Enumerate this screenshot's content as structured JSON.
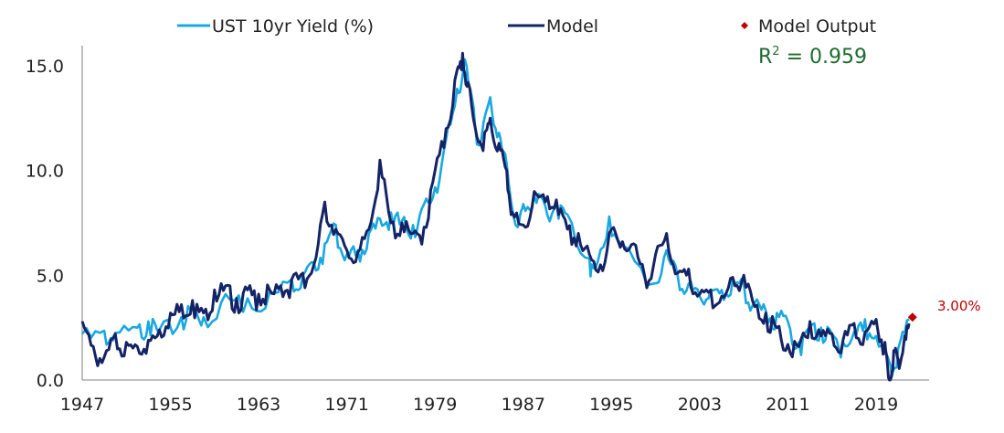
{
  "chart_data": {
    "type": "line",
    "x_range": [
      1947,
      2022.5
    ],
    "ylim": [
      0,
      15
    ],
    "xticks": [
      1947,
      1955,
      1963,
      1971,
      1979,
      1987,
      1995,
      2003,
      2011,
      2019
    ],
    "yticks": [
      0,
      5,
      10,
      15
    ],
    "ytick_labels": [
      "0.0",
      "5.0",
      "10.0",
      "15.0"
    ],
    "xlabel": "",
    "ylabel": "",
    "grid": false,
    "legend_position": "top",
    "series": [
      {
        "name": "UST 10yr Yield (%)",
        "color": "#19a8e0",
        "x": [
          1947,
          1949,
          1950,
          1952,
          1953,
          1954,
          1956,
          1957,
          1958,
          1960,
          1962,
          1964,
          1966,
          1967,
          1968,
          1969,
          1970,
          1971,
          1972,
          1973,
          1974,
          1975,
          1976,
          1977,
          1978,
          1979,
          1980,
          1981,
          1981.7,
          1982.5,
          1983,
          1984,
          1984.8,
          1985.5,
          1986.5,
          1987,
          1988,
          1989,
          1990,
          1991,
          1993,
          1993.5,
          1994.8,
          1996,
          1998.8,
          2000,
          2001,
          2002,
          2003,
          2004,
          2005,
          2006,
          2007,
          2008,
          2009,
          2010,
          2011,
          2012,
          2013,
          2014,
          2015,
          2016,
          2017,
          2018,
          2019,
          2020.3,
          2021,
          2022
        ],
        "y": [
          2.2,
          2.35,
          2.25,
          2.5,
          2.8,
          2.4,
          3.0,
          3.6,
          3.0,
          4.1,
          3.9,
          4.2,
          4.8,
          5.0,
          5.6,
          6.5,
          7.4,
          6.0,
          6.2,
          7.0,
          7.7,
          8.0,
          7.6,
          7.4,
          8.4,
          9.2,
          11.5,
          13.9,
          15.3,
          13.0,
          11.2,
          13.5,
          11.8,
          10.3,
          7.3,
          8.4,
          8.8,
          8.3,
          8.5,
          7.9,
          5.8,
          5.3,
          7.8,
          6.4,
          4.6,
          6.2,
          5.0,
          4.6,
          4.0,
          4.3,
          4.3,
          4.8,
          4.6,
          3.7,
          3.3,
          3.2,
          2.8,
          1.8,
          2.5,
          2.5,
          2.2,
          1.8,
          2.3,
          2.9,
          2.1,
          0.7,
          1.5,
          2.9
        ]
      },
      {
        "name": "Model",
        "color": "#142366",
        "x": [
          1947,
          1948,
          1949,
          1950,
          1951,
          1952,
          1953,
          1954,
          1955,
          1956,
          1957,
          1958,
          1959,
          1960,
          1961,
          1962,
          1963,
          1964,
          1965,
          1966,
          1967,
          1968,
          1969,
          1970,
          1971,
          1972,
          1973,
          1974,
          1975,
          1976,
          1977,
          1978,
          1979,
          1980,
          1981,
          1981.5,
          1982,
          1982.8,
          1983.5,
          1984,
          1984.8,
          1985.5,
          1986,
          1987,
          1988,
          1989,
          1990,
          1991,
          1992,
          1993,
          1994,
          1995,
          1996,
          1997,
          1998,
          1999,
          2000,
          2001,
          2002,
          2003,
          2004,
          2005,
          2006,
          2007,
          2008,
          2009,
          2010,
          2011,
          2012,
          2013,
          2014,
          2015,
          2016,
          2017,
          2018,
          2019,
          2019.8,
          2020.2,
          2020.6,
          2021,
          2021.5,
          2022
        ],
        "y": [
          2.8,
          1.6,
          1.1,
          2.2,
          1.8,
          1.6,
          1.9,
          2.4,
          3.2,
          3.6,
          3.8,
          3.2,
          4.3,
          4.5,
          3.9,
          4.3,
          4.1,
          4.3,
          4.5,
          4.8,
          5.1,
          5.5,
          8.5,
          7.2,
          6.2,
          6.1,
          7.2,
          10.5,
          7.5,
          7.5,
          7.0,
          7.3,
          10.0,
          12.0,
          14.8,
          15.6,
          14.2,
          11.6,
          11.8,
          12.5,
          11.3,
          10.0,
          8.0,
          7.4,
          9.0,
          8.5,
          8.6,
          7.2,
          7.0,
          6.0,
          5.5,
          7.2,
          6.6,
          6.5,
          5.0,
          6.0,
          7.0,
          5.1,
          5.3,
          4.1,
          4.3,
          4.0,
          4.9,
          5.0,
          3.5,
          3.2,
          2.5,
          1.7,
          1.6,
          2.8,
          2.1,
          2.2,
          1.9,
          2.7,
          2.3,
          2.9,
          1.8,
          0.0,
          1.4,
          1.0,
          1.7,
          2.7
        ]
      },
      {
        "name": "Model Output",
        "type": "scatter",
        "color": "#c00000",
        "x": [
          2022.3
        ],
        "y": [
          3.0
        ]
      }
    ],
    "annotations": [
      {
        "text": "R²",
        "base": "R",
        "sup": "2",
        "value_text": " = 0.959",
        "color": "#1e6b2e"
      },
      {
        "text": "3.00%",
        "color": "#c00000"
      }
    ]
  }
}
